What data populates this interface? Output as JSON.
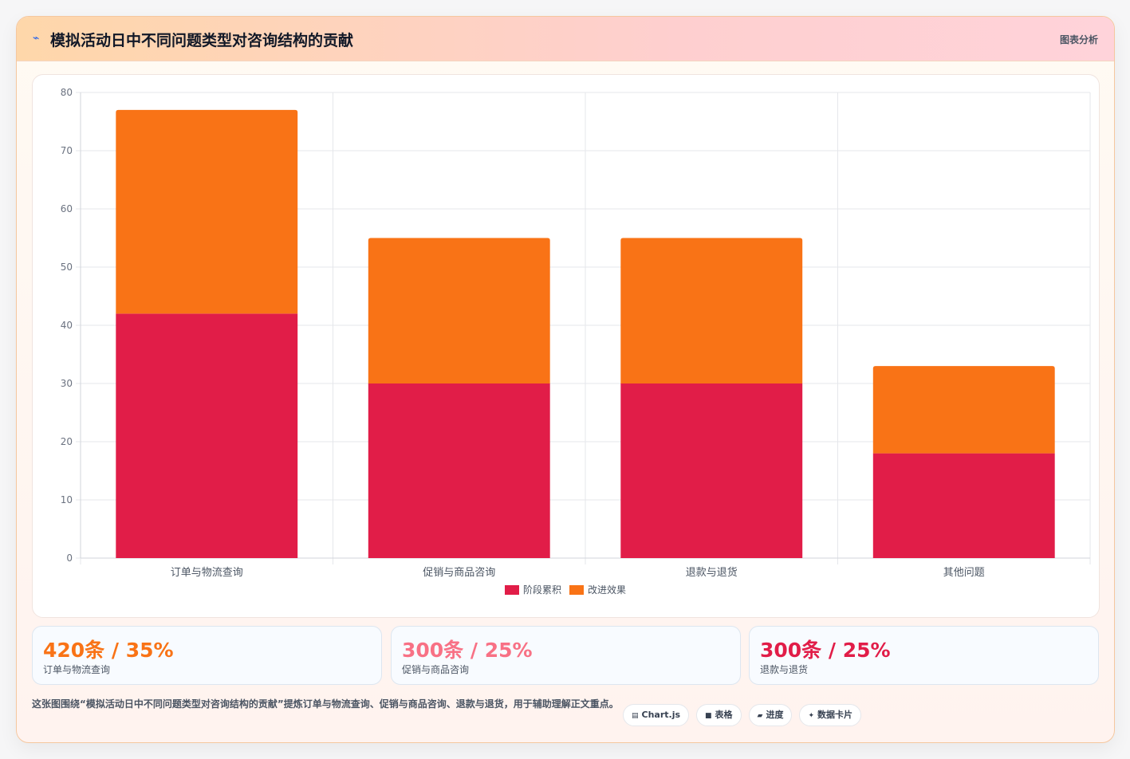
{
  "header": {
    "icon": "chart-line-icon",
    "icon_glyph": "⌁",
    "title": "模拟活动日中不同问题类型对咨询结构的贡献",
    "badge": "图表分析"
  },
  "chart_data": {
    "type": "bar",
    "stacked": true,
    "categories": [
      "订单与物流查询",
      "促销与商品咨询",
      "退款与退货",
      "其他问题"
    ],
    "series": [
      {
        "name": "阶段累积",
        "color": "#e11d48",
        "values": [
          42,
          30,
          30,
          18
        ]
      },
      {
        "name": "改进效果",
        "color": "#f97316",
        "values": [
          35,
          25,
          25,
          15
        ]
      }
    ],
    "ylim": [
      0,
      80
    ],
    "yticks": [
      0,
      10,
      20,
      30,
      40,
      50,
      60,
      70,
      80
    ],
    "grid": true,
    "legend_position": "bottom"
  },
  "stats": [
    {
      "value": "420条 / 35%",
      "label": "订单与物流查询",
      "color": "#f97316"
    },
    {
      "value": "300条 / 25%",
      "label": "促销与商品咨询",
      "color": "#f87185"
    },
    {
      "value": "300条 / 25%",
      "label": "退款与退货",
      "color": "#e11d48"
    }
  ],
  "note": "这张图围绕“模拟活动日中不同问题类型对咨询结构的贡献”提炼订单与物流查询、促销与商品咨询、退款与退货，用于辅助理解正文重点。",
  "chips": [
    {
      "icon": "chart-icon",
      "glyph": "▤",
      "label": "Chart.js"
    },
    {
      "icon": "table-icon",
      "glyph": "■",
      "label": "表格"
    },
    {
      "icon": "progress-icon",
      "glyph": "▰",
      "label": "进度"
    },
    {
      "icon": "sparkle-icon",
      "glyph": "✦",
      "label": "数据卡片"
    }
  ]
}
